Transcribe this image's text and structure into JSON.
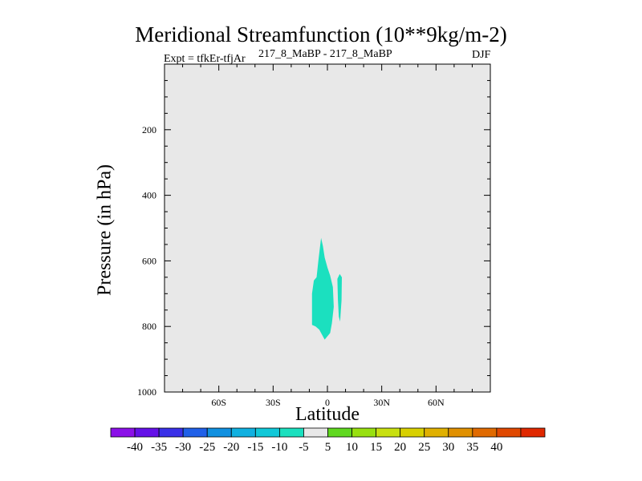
{
  "header": {
    "title": "Meridional Streamfunction (10**9kg/m-2)",
    "left_subtitle": "Expt = tfkEr-tfjAr",
    "center_subtitle": "217_8_MaBP - 217_8_MaBP",
    "right_subtitle": "DJF"
  },
  "chart_data": {
    "type": "contour",
    "xlabel": "Latitude",
    "ylabel": "Pressure (in hPa)",
    "xlim": [
      -90,
      90
    ],
    "ylim": [
      0,
      1000
    ],
    "y_reversed": true,
    "x_ticks": [
      {
        "value": -60,
        "label": "60S"
      },
      {
        "value": -30,
        "label": "30S"
      },
      {
        "value": 0,
        "label": "0"
      },
      {
        "value": 30,
        "label": "30N"
      },
      {
        "value": 60,
        "label": "60N"
      }
    ],
    "y_ticks": [
      {
        "value": 200,
        "label": "200"
      },
      {
        "value": 400,
        "label": "400"
      },
      {
        "value": 600,
        "label": "600"
      },
      {
        "value": 800,
        "label": "800"
      },
      {
        "value": 1000,
        "label": "1000"
      }
    ],
    "background_color": "#e8e8e8",
    "shaded_regions": [
      {
        "level": "-10 to -5",
        "color": "#1be0bf",
        "points": [
          [
            -3.5,
            530
          ],
          [
            -2.5,
            555
          ],
          [
            -1.5,
            590
          ],
          [
            0,
            620
          ],
          [
            1.5,
            645
          ],
          [
            3.0,
            680
          ],
          [
            3.5,
            740
          ],
          [
            2.5,
            790
          ],
          [
            1.5,
            820
          ],
          [
            -1.5,
            840
          ],
          [
            -3.0,
            825
          ],
          [
            -4.5,
            810
          ],
          [
            -6.5,
            800
          ],
          [
            -8.5,
            795
          ],
          [
            -8.5,
            700
          ],
          [
            -7.5,
            660
          ],
          [
            -6.0,
            650
          ],
          [
            -5.0,
            600
          ]
        ]
      },
      {
        "level": "-10 to -5",
        "color": "#1be0bf",
        "points": [
          [
            5.5,
            655
          ],
          [
            6.8,
            640
          ],
          [
            8.0,
            650
          ],
          [
            7.8,
            720
          ],
          [
            7.0,
            785
          ],
          [
            6.3,
            770
          ],
          [
            5.8,
            720
          ]
        ]
      }
    ],
    "colorbar": {
      "colors": [
        "#8b10e8",
        "#6410e8",
        "#3a30e8",
        "#2060e8",
        "#1090e0",
        "#10b0e0",
        "#10c8d8",
        "#1be0bf",
        "#e8e8e8",
        "#60d820",
        "#98e010",
        "#c8e010",
        "#d8d000",
        "#e0b000",
        "#e09000",
        "#e06a00",
        "#e04800",
        "#e02800"
      ],
      "labels": [
        "-40",
        "-35",
        "-30",
        "-25",
        "-20",
        "-15",
        "-10",
        "-5",
        "5",
        "10",
        "15",
        "20",
        "25",
        "30",
        "35",
        "40"
      ]
    }
  }
}
